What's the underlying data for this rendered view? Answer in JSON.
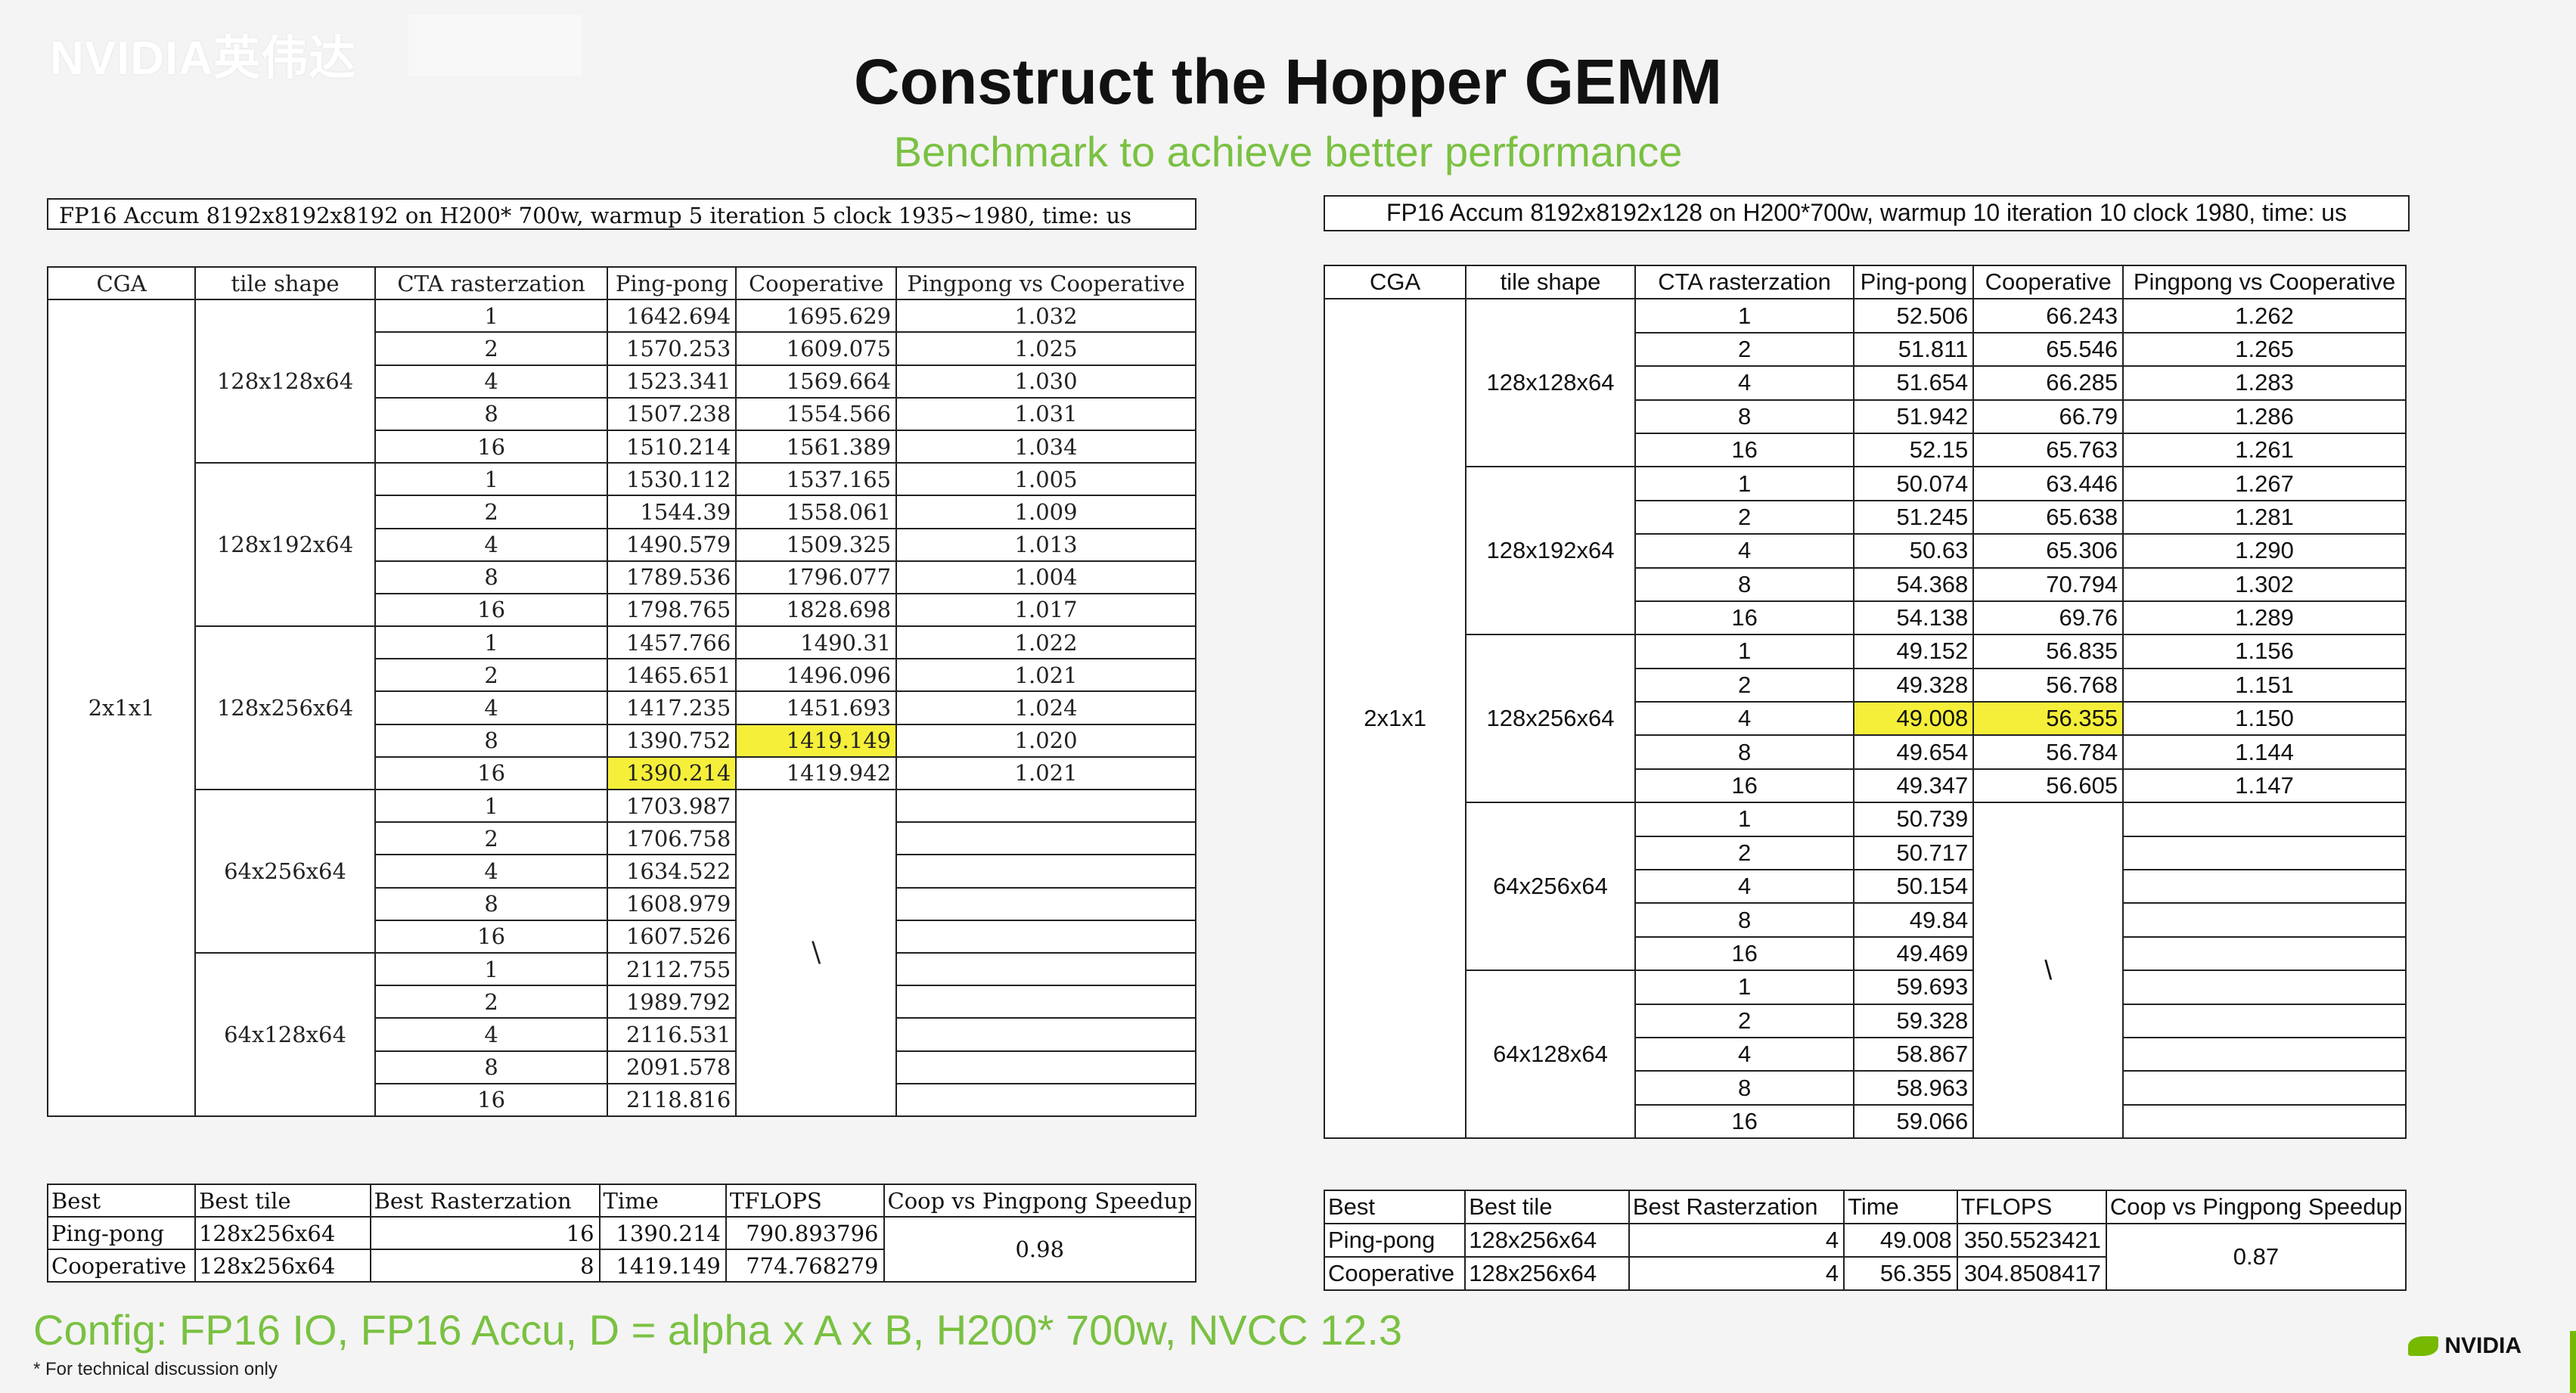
{
  "watermark": "NVIDIA英伟达",
  "title": "Construct the Hopper GEMM",
  "subtitle": "Benchmark  to achieve better performance",
  "left": {
    "caption": "FP16 Accum 8192x8192x8192 on H200* 700w, warmup 5 iteration 5 clock 1935~1980, time: us",
    "headers": [
      "CGA",
      "tile shape",
      "CTA rasterzation",
      "Ping-pong",
      "Cooperative",
      "Pingpong vs Cooperative"
    ],
    "cga": "2x1x1",
    "groups": [
      {
        "tile": "128x128x64",
        "rows": [
          [
            "1",
            "1642.694",
            "1695.629",
            "1.032"
          ],
          [
            "2",
            "1570.253",
            "1609.075",
            "1.025"
          ],
          [
            "4",
            "1523.341",
            "1569.664",
            "1.030"
          ],
          [
            "8",
            "1507.238",
            "1554.566",
            "1.031"
          ],
          [
            "16",
            "1510.214",
            "1561.389",
            "1.034"
          ]
        ]
      },
      {
        "tile": "128x192x64",
        "rows": [
          [
            "1",
            "1530.112",
            "1537.165",
            "1.005"
          ],
          [
            "2",
            "1544.39",
            "1558.061",
            "1.009"
          ],
          [
            "4",
            "1490.579",
            "1509.325",
            "1.013"
          ],
          [
            "8",
            "1789.536",
            "1796.077",
            "1.004"
          ],
          [
            "16",
            "1798.765",
            "1828.698",
            "1.017"
          ]
        ]
      },
      {
        "tile": "128x256x64",
        "rows": [
          [
            "1",
            "1457.766",
            "1490.31",
            "1.022"
          ],
          [
            "2",
            "1465.651",
            "1496.096",
            "1.021"
          ],
          [
            "4",
            "1417.235",
            "1451.693",
            "1.024"
          ],
          [
            "8",
            "1390.752",
            "1419.149",
            "1.020"
          ],
          [
            "16",
            "1390.214",
            "1419.942",
            "1.021"
          ]
        ]
      },
      {
        "tile": "64x256x64",
        "rows": [
          [
            "1",
            "1703.987"
          ],
          [
            "2",
            "1706.758"
          ],
          [
            "4",
            "1634.522"
          ],
          [
            "8",
            "1608.979"
          ],
          [
            "16",
            "1607.526"
          ]
        ]
      },
      {
        "tile": "64x128x64",
        "rows": [
          [
            "1",
            "2112.755"
          ],
          [
            "2",
            "1989.792"
          ],
          [
            "4",
            "2116.531"
          ],
          [
            "8",
            "2091.578"
          ],
          [
            "16",
            "2118.816"
          ]
        ]
      }
    ],
    "slash": "\\",
    "summary": {
      "headers": [
        "Best",
        "Best tile",
        "Best Rasterzation",
        "Time",
        "TFLOPS",
        "Coop vs Pingpong Speedup"
      ],
      "rows": [
        [
          "Ping-pong",
          "128x256x64",
          "16",
          "1390.214",
          "790.893796"
        ],
        [
          "Cooperative",
          "128x256x64",
          "8",
          "1419.149",
          "774.768279"
        ]
      ],
      "speedup": "0.98"
    }
  },
  "right": {
    "caption": "FP16 Accum 8192x8192x128 on H200*700w, warmup 10 iteration 10 clock 1980, time: us",
    "headers": [
      "CGA",
      "tile shape",
      "CTA rasterzation",
      "Ping-pong",
      "Cooperative",
      "Pingpong vs Cooperative"
    ],
    "cga": "2x1x1",
    "groups": [
      {
        "tile": "128x128x64",
        "rows": [
          [
            "1",
            "52.506",
            "66.243",
            "1.262"
          ],
          [
            "2",
            "51.811",
            "65.546",
            "1.265"
          ],
          [
            "4",
            "51.654",
            "66.285",
            "1.283"
          ],
          [
            "8",
            "51.942",
            "66.79",
            "1.286"
          ],
          [
            "16",
            "52.15",
            "65.763",
            "1.261"
          ]
        ]
      },
      {
        "tile": "128x192x64",
        "rows": [
          [
            "1",
            "50.074",
            "63.446",
            "1.267"
          ],
          [
            "2",
            "51.245",
            "65.638",
            "1.281"
          ],
          [
            "4",
            "50.63",
            "65.306",
            "1.290"
          ],
          [
            "8",
            "54.368",
            "70.794",
            "1.302"
          ],
          [
            "16",
            "54.138",
            "69.76",
            "1.289"
          ]
        ]
      },
      {
        "tile": "128x256x64",
        "rows": [
          [
            "1",
            "49.152",
            "56.835",
            "1.156"
          ],
          [
            "2",
            "49.328",
            "56.768",
            "1.151"
          ],
          [
            "4",
            "49.008",
            "56.355",
            "1.150"
          ],
          [
            "8",
            "49.654",
            "56.784",
            "1.144"
          ],
          [
            "16",
            "49.347",
            "56.605",
            "1.147"
          ]
        ]
      },
      {
        "tile": "64x256x64",
        "rows": [
          [
            "1",
            "50.739"
          ],
          [
            "2",
            "50.717"
          ],
          [
            "4",
            "50.154"
          ],
          [
            "8",
            "49.84"
          ],
          [
            "16",
            "49.469"
          ]
        ]
      },
      {
        "tile": "64x128x64",
        "rows": [
          [
            "1",
            "59.693"
          ],
          [
            "2",
            "59.328"
          ],
          [
            "4",
            "58.867"
          ],
          [
            "8",
            "58.963"
          ],
          [
            "16",
            "59.066"
          ]
        ]
      }
    ],
    "slash": "\\",
    "summary": {
      "headers": [
        "Best",
        "Best tile",
        "Best Rasterzation",
        "Time",
        "TFLOPS",
        "Coop vs Pingpong Speedup"
      ],
      "rows": [
        [
          "Ping-pong",
          "128x256x64",
          "4",
          "49.008",
          "350.5523421"
        ],
        [
          "Cooperative",
          "128x256x64",
          "4",
          "56.355",
          "304.8508417"
        ]
      ],
      "speedup": "0.87"
    }
  },
  "highlight_color": "#f5ef3a",
  "accent_color": "#7ac142",
  "config": "Config: FP16 IO, FP16 Accu, D = alpha x A x B, H200*  700w, NVCC 12.3",
  "footnote": "* For technical discussion only",
  "logo": "NVIDIA"
}
